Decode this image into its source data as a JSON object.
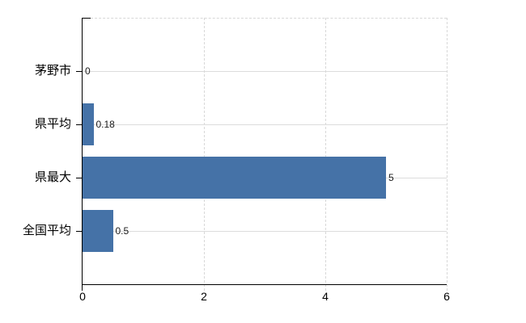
{
  "chart_data": {
    "type": "bar",
    "orientation": "horizontal",
    "title": "",
    "categories": [
      "茅野市",
      "県平均",
      "県最大",
      "全国平均"
    ],
    "values": [
      0,
      0.18,
      5,
      0.5
    ],
    "value_labels": [
      "0",
      "0.18",
      "5",
      "0.5"
    ],
    "xlabel": "",
    "ylabel": "",
    "xlim": [
      0,
      6
    ],
    "xticks": [
      0,
      2,
      4,
      6
    ],
    "xtick_labels": [
      "0",
      "2",
      "4",
      "6"
    ],
    "grid": true,
    "legend_position": "none",
    "bar_color": "#4572a7",
    "hgrid_color": "#dcdcdc",
    "vgrid_color": "#d8d8d8",
    "axis_color": "#000000",
    "value_label_color": "#1a1a1a",
    "background_color": "#ffffff"
  }
}
